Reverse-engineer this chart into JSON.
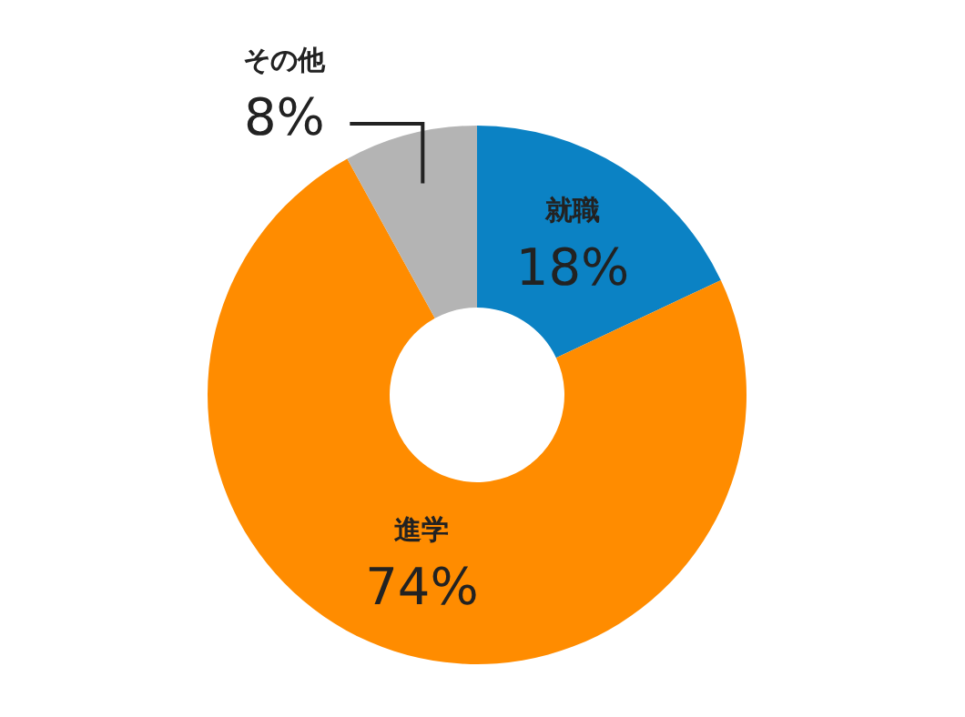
{
  "chart_data": {
    "type": "donut",
    "categories": [
      "就職",
      "進学",
      "その他"
    ],
    "values": [
      18,
      74,
      8
    ],
    "colors": [
      "#0b82c4",
      "#ff8c00",
      "#b4b4b4"
    ],
    "value_labels": [
      "18%",
      "74%",
      "8%"
    ]
  }
}
